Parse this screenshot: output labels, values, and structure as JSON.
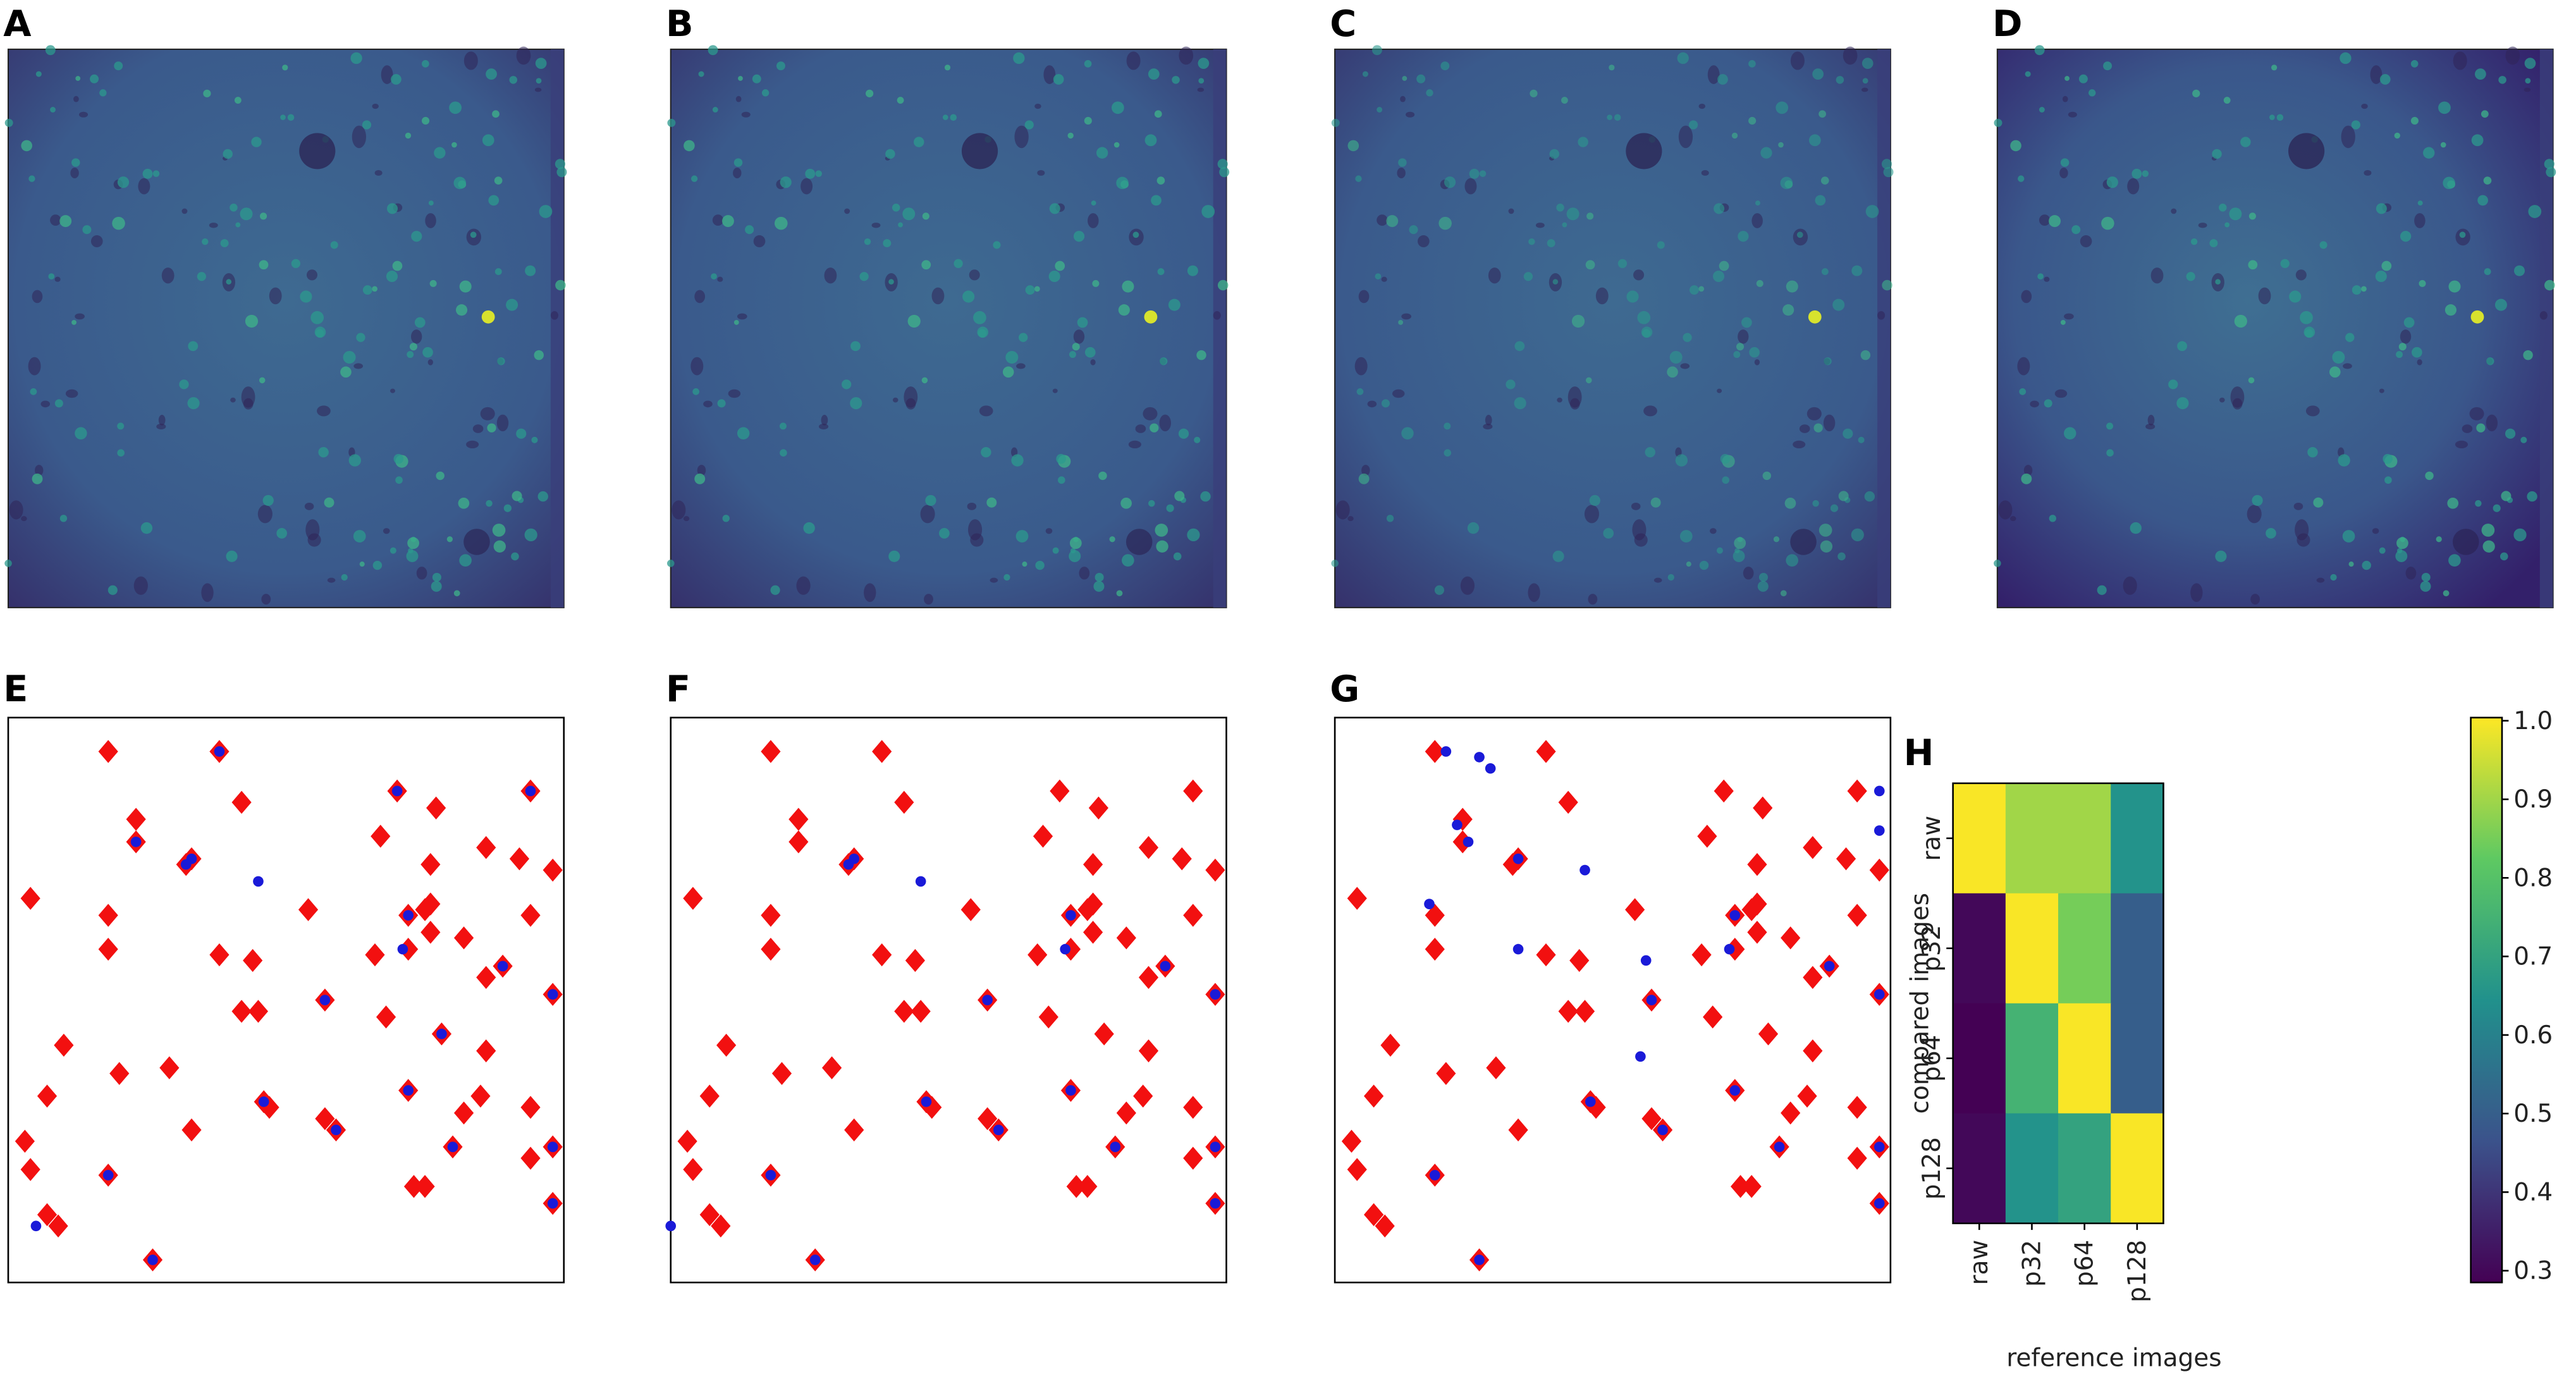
{
  "image_panels": [
    {
      "label": "A"
    },
    {
      "label": "B"
    },
    {
      "label": "C"
    },
    {
      "label": "D"
    }
  ],
  "chart_data": [
    {
      "type": "scatter",
      "label": "E",
      "xlim": [
        0,
        100
      ],
      "ylim": [
        0,
        100
      ],
      "series": [
        {
          "color": "#f21010",
          "marker": "diamond",
          "x": [
            18,
            38,
            23,
            42,
            70,
            77,
            94,
            23,
            32,
            33,
            67,
            76,
            86,
            92,
            4,
            18,
            54,
            76,
            98,
            72,
            75,
            76,
            82,
            94,
            18,
            38,
            44,
            66,
            72,
            89,
            86,
            57,
            42,
            45,
            68,
            78,
            98,
            10,
            86,
            20,
            29,
            7,
            46,
            47,
            57,
            59,
            72,
            85,
            33,
            94,
            82,
            3,
            4,
            80,
            98,
            94,
            18,
            73,
            75,
            98,
            7,
            9,
            26
          ],
          "y": [
            94,
            94,
            82,
            85,
            87,
            84,
            87,
            78,
            74,
            75,
            79,
            74,
            77,
            75,
            68,
            65,
            66,
            67,
            73,
            65,
            66,
            62,
            61,
            65,
            59,
            58,
            57,
            58,
            59,
            56,
            54,
            50,
            48,
            48,
            47,
            44,
            51,
            42,
            41,
            37,
            38,
            33,
            32,
            31,
            29,
            27,
            34,
            33,
            27,
            31,
            30,
            25,
            20,
            24,
            24,
            22,
            19,
            17,
            17,
            14,
            12,
            10,
            4
          ]
        },
        {
          "color": "#1a1ad8",
          "marker": "circle",
          "x": [
            38,
            23,
            33,
            32,
            70,
            94,
            45,
            72,
            71,
            89,
            57,
            78,
            98,
            72,
            46,
            59,
            80,
            98,
            18,
            98,
            5,
            26
          ],
          "y": [
            94,
            78,
            75,
            74,
            87,
            87,
            71,
            65,
            59,
            56,
            50,
            44,
            51,
            34,
            32,
            27,
            24,
            24,
            19,
            14,
            10,
            4
          ]
        }
      ]
    },
    {
      "type": "scatter",
      "label": "F",
      "xlim": [
        0,
        100
      ],
      "ylim": [
        0,
        100
      ],
      "series": [
        {
          "color": "#f21010",
          "marker": "diamond",
          "x": [
            18,
            38,
            23,
            42,
            70,
            77,
            94,
            23,
            32,
            33,
            67,
            76,
            86,
            92,
            4,
            18,
            54,
            76,
            98,
            72,
            75,
            76,
            82,
            94,
            18,
            38,
            44,
            66,
            72,
            89,
            86,
            57,
            42,
            45,
            68,
            78,
            98,
            10,
            86,
            20,
            29,
            7,
            46,
            47,
            57,
            59,
            72,
            85,
            33,
            94,
            82,
            3,
            4,
            80,
            98,
            94,
            18,
            73,
            75,
            98,
            7,
            9,
            26
          ],
          "y": [
            94,
            94,
            82,
            85,
            87,
            84,
            87,
            78,
            74,
            75,
            79,
            74,
            77,
            75,
            68,
            65,
            66,
            67,
            73,
            65,
            66,
            62,
            61,
            65,
            59,
            58,
            57,
            58,
            59,
            56,
            54,
            50,
            48,
            48,
            47,
            44,
            51,
            42,
            41,
            37,
            38,
            33,
            32,
            31,
            29,
            27,
            34,
            33,
            27,
            31,
            30,
            25,
            20,
            24,
            24,
            22,
            19,
            17,
            17,
            14,
            12,
            10,
            4
          ]
        },
        {
          "color": "#1a1ad8",
          "marker": "circle",
          "x": [
            33,
            32,
            45,
            72,
            71,
            89,
            57,
            98,
            72,
            46,
            59,
            80,
            98,
            18,
            98,
            0,
            26
          ],
          "y": [
            75,
            74,
            71,
            65,
            59,
            56,
            50,
            51,
            34,
            32,
            27,
            24,
            24,
            19,
            14,
            10,
            4
          ]
        }
      ]
    },
    {
      "type": "scatter",
      "label": "G",
      "xlim": [
        0,
        100
      ],
      "ylim": [
        0,
        100
      ],
      "series": [
        {
          "color": "#f21010",
          "marker": "diamond",
          "x": [
            18,
            38,
            23,
            42,
            70,
            77,
            94,
            23,
            32,
            33,
            67,
            76,
            86,
            92,
            4,
            18,
            54,
            76,
            98,
            72,
            75,
            76,
            82,
            94,
            18,
            38,
            44,
            66,
            72,
            89,
            86,
            57,
            42,
            45,
            68,
            78,
            98,
            10,
            86,
            20,
            29,
            7,
            46,
            47,
            57,
            59,
            72,
            85,
            33,
            94,
            82,
            3,
            4,
            80,
            98,
            94,
            18,
            73,
            75,
            98,
            7,
            9,
            26
          ],
          "y": [
            94,
            94,
            82,
            85,
            87,
            84,
            87,
            78,
            74,
            75,
            79,
            74,
            77,
            75,
            68,
            65,
            66,
            67,
            73,
            65,
            66,
            62,
            61,
            65,
            59,
            58,
            57,
            58,
            59,
            56,
            54,
            50,
            48,
            48,
            47,
            44,
            51,
            42,
            41,
            37,
            38,
            33,
            32,
            31,
            29,
            27,
            34,
            33,
            27,
            31,
            30,
            25,
            20,
            24,
            24,
            22,
            19,
            17,
            17,
            14,
            12,
            10,
            4
          ]
        },
        {
          "color": "#1a1ad8",
          "marker": "circle",
          "x": [
            20,
            26,
            28,
            22,
            24,
            33,
            45,
            17,
            33,
            56,
            55,
            71,
            72,
            57,
            98,
            98,
            98,
            89,
            72,
            46,
            59,
            80,
            98,
            18,
            98,
            26
          ],
          "y": [
            94,
            93,
            91,
            81,
            78,
            75,
            73,
            67,
            59,
            57,
            40,
            59,
            65,
            50,
            51,
            87,
            80,
            56,
            34,
            32,
            27,
            24,
            24,
            19,
            14,
            4
          ]
        }
      ]
    },
    {
      "type": "heatmap",
      "label": "H",
      "xlabel": "reference images",
      "ylabel": "compared images",
      "x_categories": [
        "raw",
        "p32",
        "p64",
        "p128"
      ],
      "y_categories": [
        "raw",
        "p32",
        "p64",
        "p128"
      ],
      "values": [
        [
          1.0,
          0.9,
          0.9,
          0.65
        ],
        [
          0.3,
          1.0,
          0.85,
          0.5
        ],
        [
          0.28,
          0.75,
          1.0,
          0.5
        ],
        [
          0.3,
          0.65,
          0.7,
          1.0
        ]
      ],
      "colormap": "viridis",
      "clim": [
        0.285,
        1.004
      ],
      "cbar_ticks": [
        0.3,
        0.4,
        0.5,
        0.6,
        0.7,
        0.8,
        0.9,
        {
          "value": 1,
          "label": "1.0"
        }
      ]
    }
  ]
}
